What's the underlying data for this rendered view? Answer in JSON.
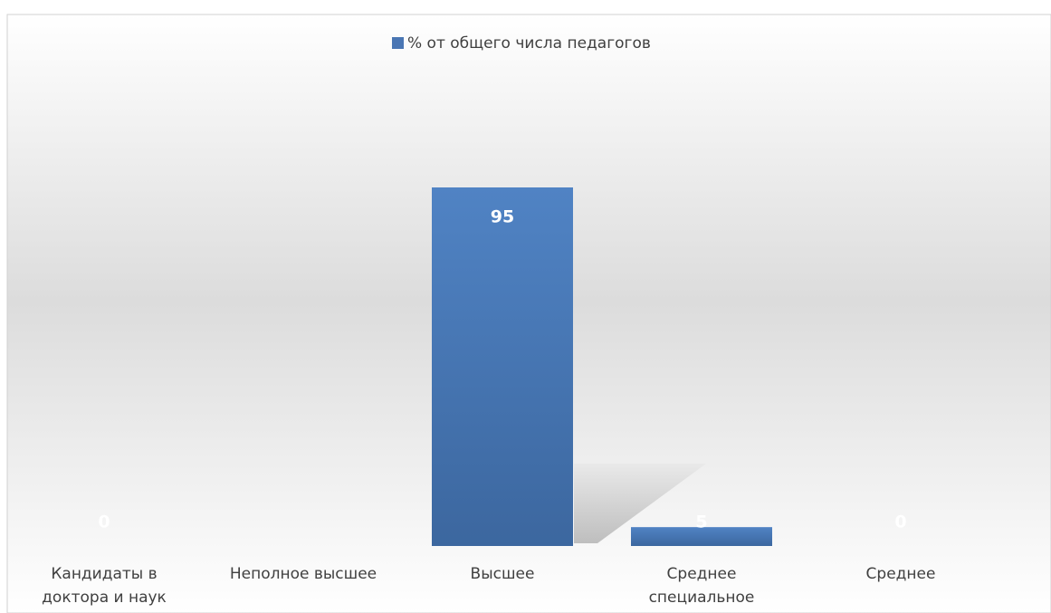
{
  "chart_data": {
    "type": "bar",
    "legend_label": "% от общего числа педагогов",
    "categories": [
      [
        "Кандидаты в",
        "доктора и наук"
      ],
      [
        "Неполное высшее"
      ],
      [
        "Высшее"
      ],
      [
        "Среднее",
        "специальное"
      ],
      [
        "Среднее"
      ]
    ],
    "values": [
      0,
      null,
      95,
      5,
      0
    ],
    "color": "#4a76b4"
  }
}
